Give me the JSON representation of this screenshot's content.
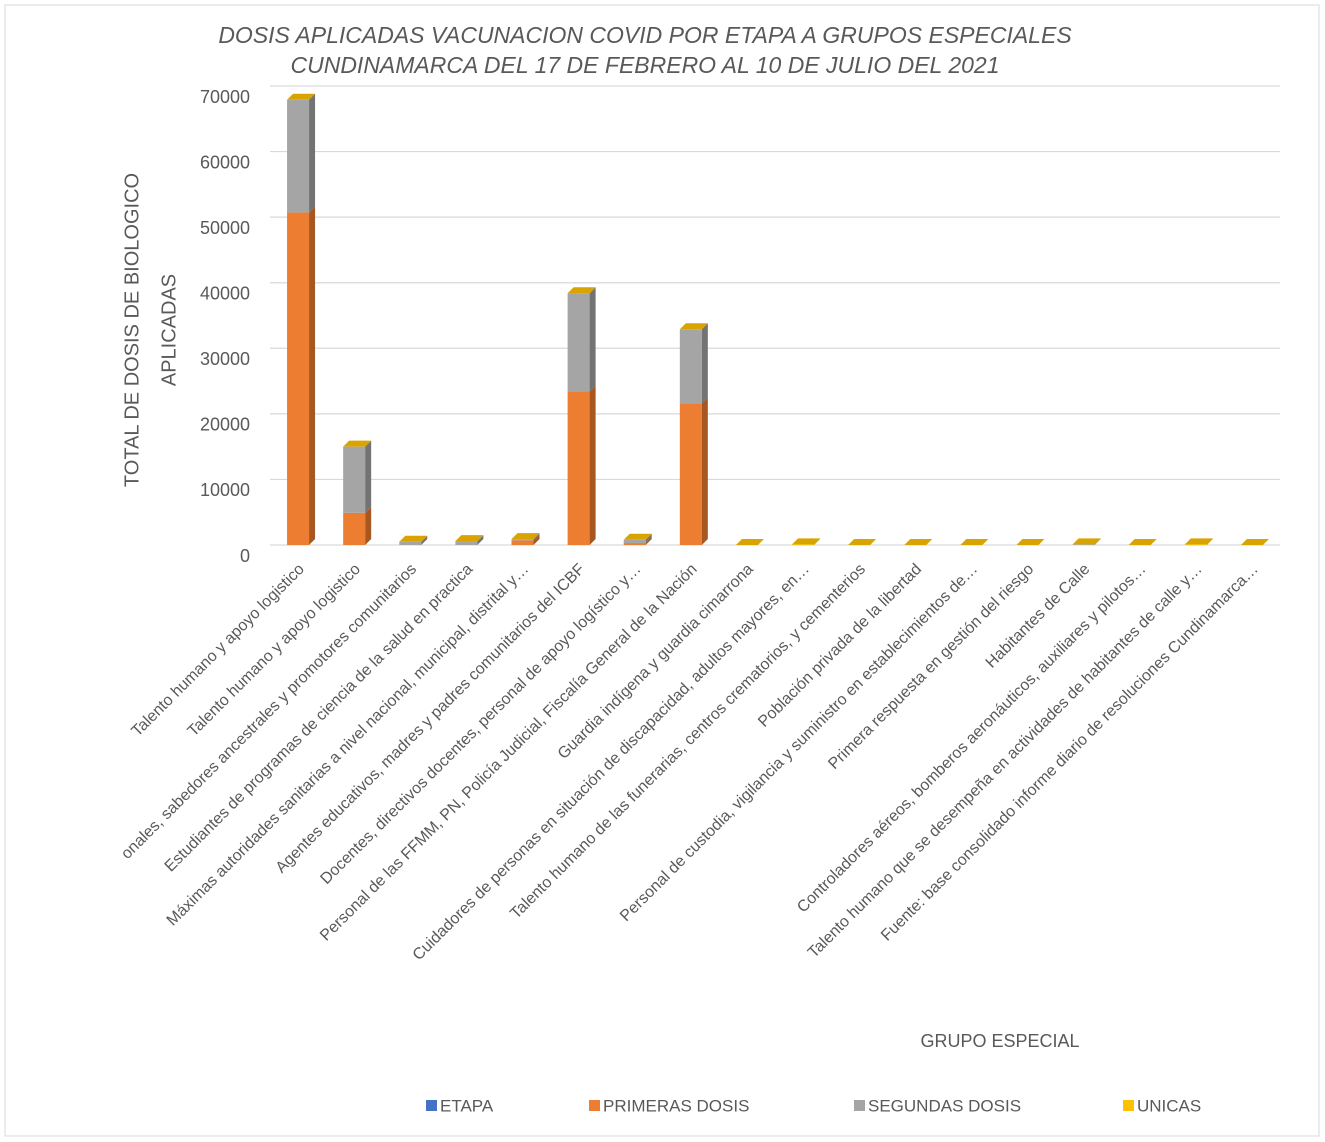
{
  "chart_data": {
    "type": "stacked-bar",
    "title": [
      "DOSIS APLICADAS VACUNACION COVID POR ETAPA A GRUPOS ESPECIALES",
      "CUNDINAMARCA DEL 17 DE FEBRERO AL 10 DE JULIO DEL 2021"
    ],
    "y_label": [
      "TOTAL DE DOSIS DE BIOLOGICO",
      "APLICADAS"
    ],
    "x_label": "GRUPO ESPECIAL",
    "categories": [
      "Talento humano  y apoyo logistico",
      "Talento humano  y apoyo logistico",
      "onales, sabedores ancestrales y promotores comunitarios",
      "Estudiantes de programas de ciencia de la salud en practica",
      "Máximas autoridades sanitarias a nivel nacional, municipal, distrital y…",
      "Agentes educativos, madres y padres comunitarios del ICBF",
      "Docentes, directivos docentes, personal de apoyo logístico y…",
      "Personal de las FFMM, PN, Policía Judicial, Fiscalía General de la Nación",
      "Guardia indígena y guardia cimarrona",
      "Cuidadores de personas en situación de discapacidad, adultos mayores, en…",
      "Talento humano de las funerarias, centros crematorios, y cementerios",
      "Población privada de la libertad",
      "Personal de custodia, vigilancia y suministro en establecimientos de…",
      "Primera respuesta en gestión del riesgo",
      "Habitantes de Calle",
      "Controladores aéreos, bomberos aeronáuticos, auxiliares y pilotos…",
      "Talento humano que se desempeña en actividades de habitantes de calle y…",
      "Fuente: base  consolidado informe diario de resoluciones Cundinamarca…"
    ],
    "series": [
      {
        "name": "ETAPA",
        "color": "#4472c4",
        "values": [
          0,
          0,
          0,
          0,
          0,
          0,
          0,
          0,
          0,
          0,
          0,
          0,
          0,
          0,
          0,
          0,
          0,
          0
        ]
      },
      {
        "name": "PRIMERAS DOSIS",
        "color": "#ed7d31",
        "values": [
          50700,
          4900,
          0,
          0,
          700,
          23400,
          300,
          21600,
          0,
          0,
          0,
          0,
          0,
          0,
          0,
          0,
          0,
          0
        ]
      },
      {
        "name": "SEGUNDAS DOSIS",
        "color": "#a5a5a5",
        "values": [
          17200,
          10100,
          500,
          600,
          200,
          15000,
          500,
          11300,
          0,
          0,
          0,
          0,
          0,
          0,
          100,
          0,
          0,
          0
        ]
      },
      {
        "name": "UNICAS",
        "color": "#ffc000",
        "values": [
          0,
          0,
          0,
          0,
          0,
          0,
          0,
          0,
          0,
          100,
          0,
          0,
          0,
          0,
          0,
          0,
          100,
          0
        ]
      }
    ],
    "ylim": [
      0,
      70000
    ],
    "yticks": [
      0,
      10000,
      20000,
      30000,
      40000,
      50000,
      60000,
      70000
    ],
    "grid": true
  }
}
